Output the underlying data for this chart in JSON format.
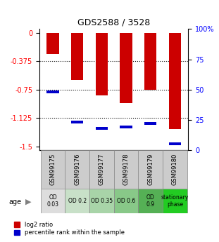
{
  "title": "GDS2588 / 3528",
  "categories": [
    "GSM99175",
    "GSM99176",
    "GSM99177",
    "GSM99178",
    "GSM99179",
    "GSM99180"
  ],
  "log2_values": [
    -0.28,
    -0.62,
    -0.83,
    -0.93,
    -0.75,
    -1.27
  ],
  "percentile_ranks": [
    48,
    23,
    18,
    19,
    22,
    5
  ],
  "bar_color": "#cc0000",
  "percentile_color": "#0000cc",
  "yticks_left": [
    0,
    -0.375,
    -0.75,
    -1.125,
    -1.5
  ],
  "yticks_right": [
    100,
    75,
    50,
    25,
    0
  ],
  "ylim": [
    -1.55,
    0.05
  ],
  "right_ylim": [
    0,
    100
  ],
  "age_labels": [
    "OD\n0.03",
    "OD 0.2",
    "OD 0.35",
    "OD 0.6",
    "OD\n0.9",
    "stationary\nphase"
  ],
  "age_bg_colors": [
    "#dddddd",
    "#c8e0c8",
    "#a8d4a8",
    "#88c888",
    "#55b055",
    "#22cc22"
  ],
  "xlabel_row": "age",
  "legend_red": "log2 ratio",
  "legend_blue": "percentile rank within the sample",
  "bar_width": 0.5
}
